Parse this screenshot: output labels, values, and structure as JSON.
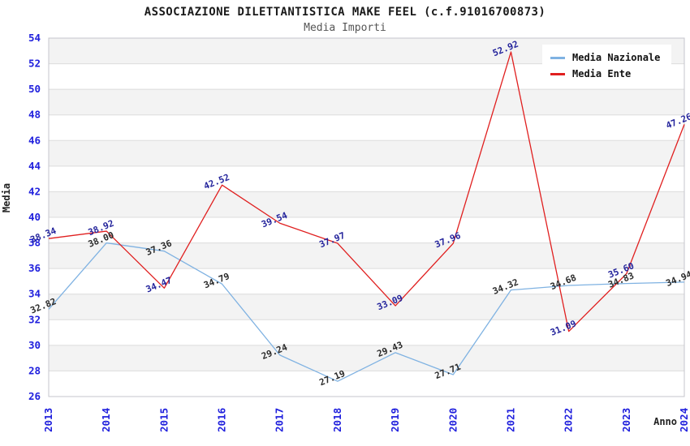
{
  "title": "ASSOCIAZIONE DILETTANTISTICA MAKE FEEL (c.f.91016700873)",
  "subtitle": "Media Importi",
  "axes": {
    "x_label": "Anno",
    "y_label": "Media"
  },
  "legend": {
    "position": "top-right",
    "items": [
      "Media Nazionale",
      "Media Ente"
    ]
  },
  "chart_data": {
    "type": "line",
    "title": "ASSOCIAZIONE DILETTANTISTICA MAKE FEEL (c.f.91016700873)",
    "subtitle": "Media Importi",
    "xlabel": "Anno",
    "ylabel": "Media",
    "x": [
      "2013",
      "2014",
      "2015",
      "2016",
      "2017",
      "2018",
      "2019",
      "2020",
      "2021",
      "2022",
      "2023",
      "2024"
    ],
    "series": [
      {
        "name": "Media Nazionale",
        "color": "#7fb2e2",
        "label_color": "#2a2a2a",
        "values": [
          32.82,
          38.0,
          37.36,
          34.79,
          29.24,
          27.19,
          29.43,
          27.71,
          34.32,
          34.68,
          34.83,
          34.94
        ]
      },
      {
        "name": "Media Ente",
        "color": "#e01f1f",
        "label_color": "#24249c",
        "values": [
          38.34,
          38.92,
          34.47,
          42.52,
          39.54,
          37.97,
          33.09,
          37.96,
          52.92,
          31.09,
          35.6,
          47.26
        ]
      }
    ],
    "ylim": [
      26,
      54
    ],
    "ytick_step": 2,
    "grid": "horizontal-bands",
    "legend_position": "top-right",
    "data_labels": "two-decimals-rotated",
    "colors": {
      "tick": "#2020dd",
      "band": "#f3f3f3",
      "band_alt": "#ffffff",
      "gridline": "#dcdcdc",
      "border": "#c5c5cc"
    }
  }
}
